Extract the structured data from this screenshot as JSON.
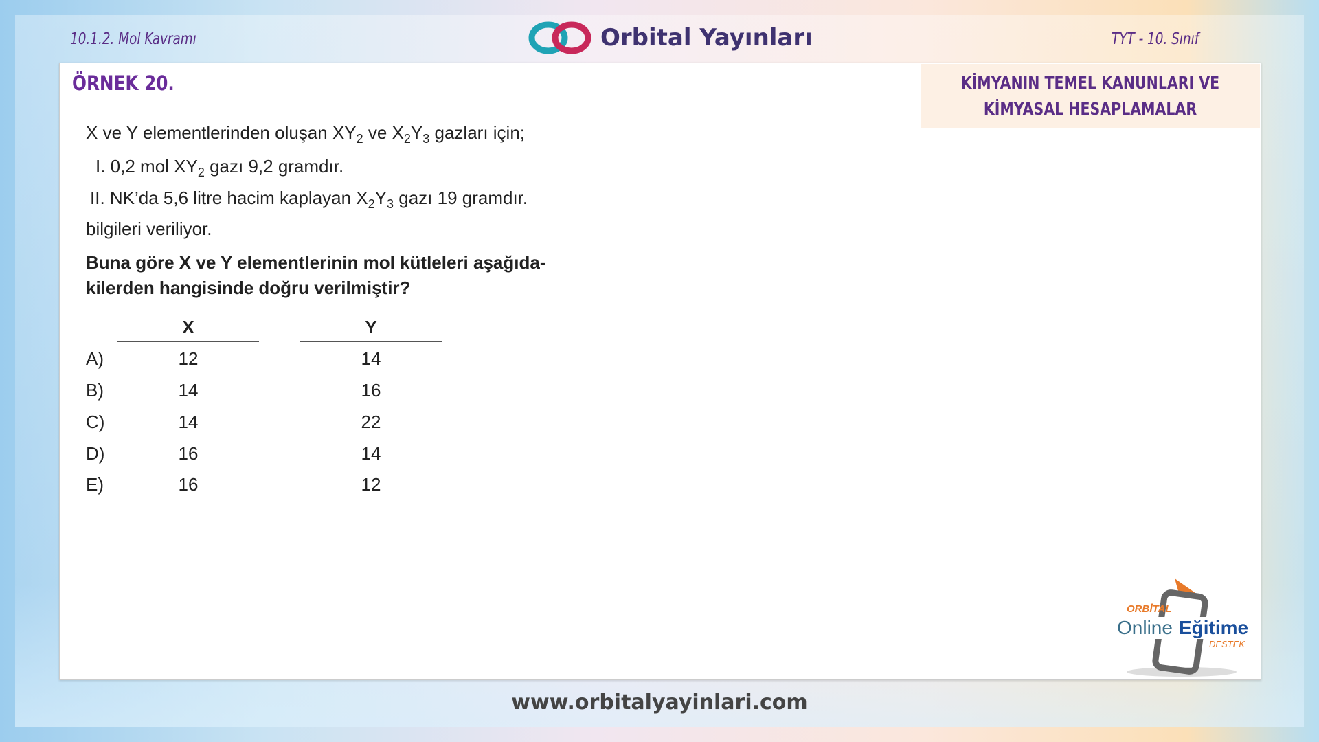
{
  "header": {
    "left": "10.1.2. Mol Kavramı",
    "brand": "Orbital Yayınları",
    "right": "TYT - 10. Sınıf"
  },
  "example": {
    "title": "ÖRNEK 20."
  },
  "topic": {
    "line1": "KİMYANIN TEMEL KANUNLARI VE",
    "line2": "KİMYASAL HESAPLAMALAR"
  },
  "question": {
    "intro": {
      "a": "X ve Y elementlerinden oluşan XY",
      "s1": "2",
      "b": " ve X",
      "s2": "2",
      "c": "Y",
      "s3": "3",
      "d": " gazları için;"
    },
    "item1": {
      "a": "I. 0,2 mol XY",
      "s1": "2",
      "b": " gazı 9,2 gramdır."
    },
    "item2": {
      "a": "II. NK’da 5,6 litre hacim kaplayan X",
      "s1": "2",
      "b": "Y",
      "s2": "3",
      "c": " gazı 19 gramdır."
    },
    "outro": "bilgileri veriliyor.",
    "prompt1": "Buna göre X ve Y elementlerinin mol kütleleri aşağıda-",
    "prompt2": "kilerden hangisinde doğru verilmiştir?"
  },
  "table": {
    "headers": [
      "X",
      "Y"
    ],
    "rows": [
      {
        "label": "A)",
        "x": "12",
        "y": "14"
      },
      {
        "label": "B)",
        "x": "14",
        "y": "16"
      },
      {
        "label": "C)",
        "x": "14",
        "y": "22"
      },
      {
        "label": "D)",
        "x": "16",
        "y": "14"
      },
      {
        "label": "E)",
        "x": "16",
        "y": "12"
      }
    ]
  },
  "badge": {
    "top": "ORBİTAL",
    "main1": "Online",
    "main2": "Eğitime",
    "bottom": "DESTEK"
  },
  "footer": {
    "url": "www.orbitalyayinlari.com"
  },
  "colors": {
    "purple": "#5a2d86",
    "brand_red": "#c8285a",
    "brand_teal": "#1fa3b5",
    "orange": "#e87a2a",
    "blue": "#1a4f9c"
  }
}
